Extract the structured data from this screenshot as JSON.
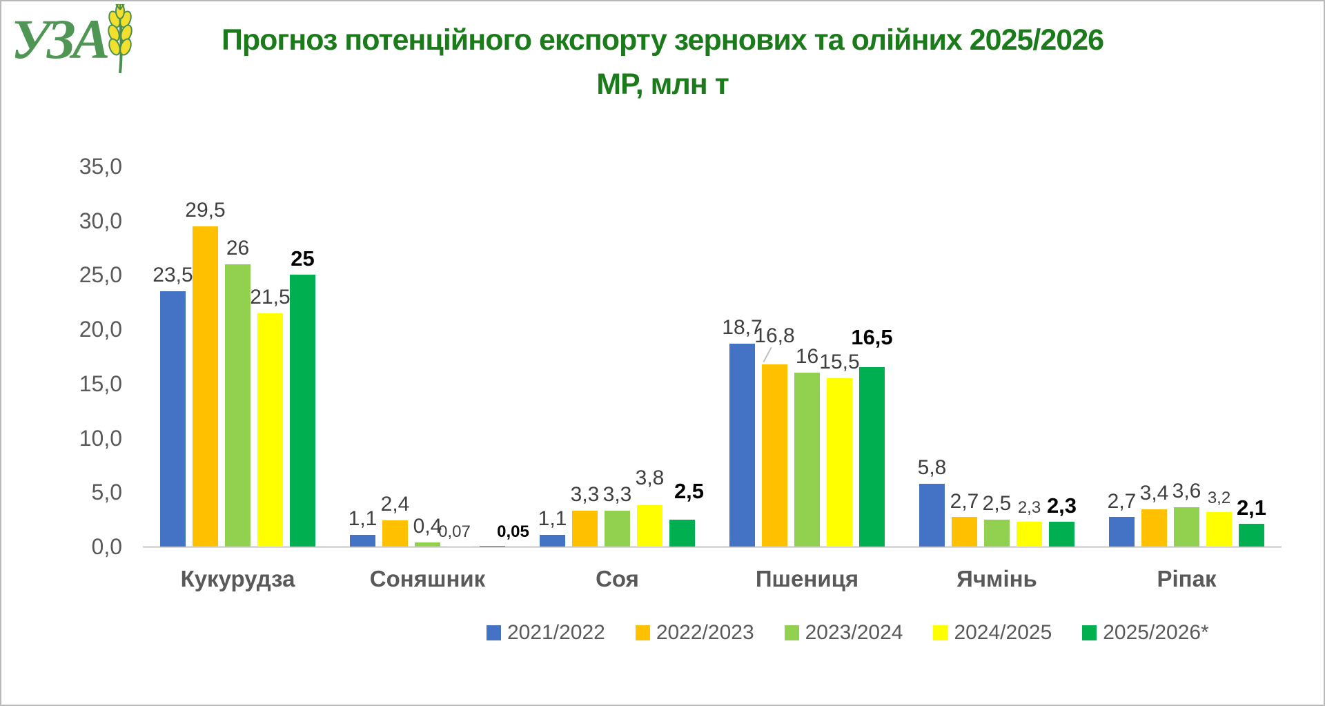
{
  "logo": {
    "text": "УЗА",
    "color": "#4f9654",
    "wheat_color": "#f2df2e",
    "wheat_outline": "#4a8f50"
  },
  "title": {
    "line1": "Прогноз потенційного експорту зернових та олійних 2025/2026",
    "line2": "МР, млн т",
    "color": "#1b7b1b"
  },
  "chart_data": {
    "type": "bar",
    "title": "Прогноз потенційного експорту зернових та олійних 2025/2026 МР, млн т",
    "unit": "млн т",
    "categories": [
      "Кукурудза",
      "Соняшник",
      "Соя",
      "Пшениця",
      "Ячмінь",
      "Ріпак"
    ],
    "series": [
      {
        "name": "2021/2022",
        "color": "#4472c4",
        "values": [
          23.5,
          1.1,
          1.1,
          18.7,
          5.8,
          2.7
        ],
        "labels": [
          "23,5",
          "1,1",
          "1,1",
          "18,7",
          "5,8",
          "2,7"
        ]
      },
      {
        "name": "2022/2023",
        "color": "#ffc000",
        "values": [
          29.5,
          2.4,
          3.3,
          16.8,
          2.7,
          3.4
        ],
        "labels": [
          "29,5",
          "2,4",
          "3,3",
          "16,8",
          "2,7",
          "3,4"
        ]
      },
      {
        "name": "2023/2024",
        "color": "#92d050",
        "values": [
          26,
          0.4,
          3.3,
          16,
          2.5,
          3.6
        ],
        "labels": [
          "26",
          "0,4",
          "3,3",
          "16",
          "2,5",
          "3,6"
        ]
      },
      {
        "name": "2024/2025",
        "color": "#ffff00",
        "values": [
          21.5,
          0.07,
          3.8,
          15.5,
          2.3,
          3.2
        ],
        "labels": [
          "21,5",
          "0,07",
          "3,8",
          "15,5",
          "2,3",
          "3,2"
        ]
      },
      {
        "name": "2025/2026*",
        "color": "#00b050",
        "values": [
          25,
          0.05,
          2.5,
          16.5,
          2.3,
          2.1
        ],
        "labels": [
          "25",
          "0,05",
          "2,5",
          "16,5",
          "2,3",
          "2,1"
        ],
        "bold_labels": true
      }
    ],
    "y_axis": {
      "min": 0,
      "max": 35,
      "step": 5,
      "ticks": [
        "0,0",
        "5,0",
        "10,0",
        "15,0",
        "20,0",
        "25,0",
        "30,0",
        "35,0"
      ],
      "decimal_separator": ","
    },
    "grid": false,
    "legend": {
      "position": "bottom",
      "entries": [
        "2021/2022",
        "2022/2023",
        "2023/2024",
        "2024/2025",
        "2025/2026*"
      ]
    },
    "layout_hints": {
      "label_overrides": {
        "3,1": {
          "dx": -8,
          "small": true
        },
        "4,1": {
          "dx": 30,
          "small": true
        },
        "3,4": {
          "small": true
        },
        "3,5": {
          "small": true
        },
        "3,2": {
          "raise": 16
        },
        "4,2": {
          "raise": 18,
          "dx": 10
        },
        "1,3": {
          "raise": 18,
          "leader": true
        },
        "4,3": {
          "raise": 20
        }
      }
    }
  }
}
